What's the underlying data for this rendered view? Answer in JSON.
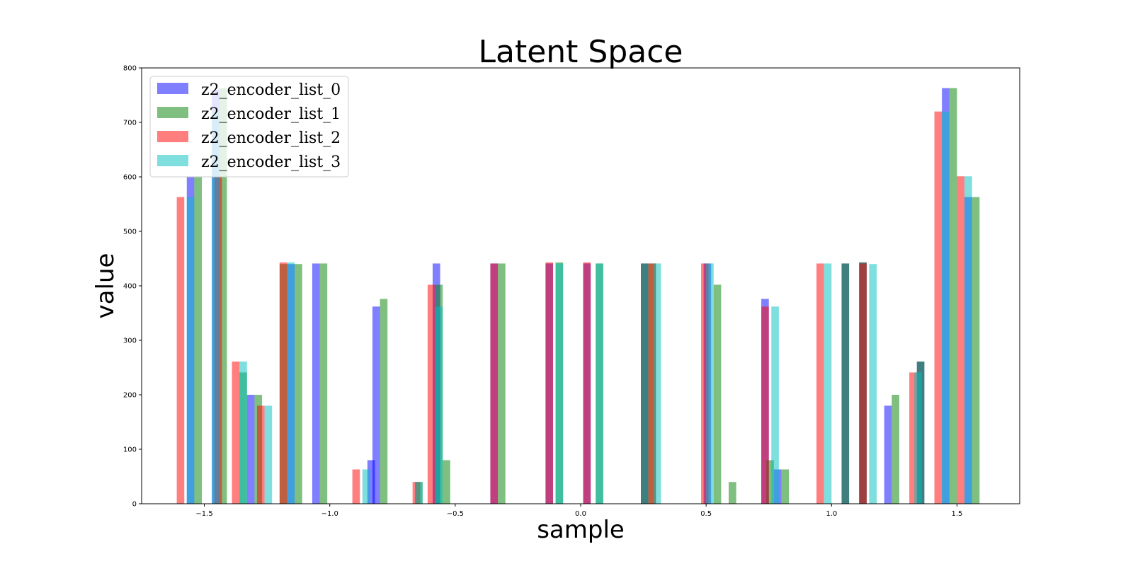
{
  "chart_data": {
    "type": "bar",
    "title": "Latent Space",
    "xlabel": "sample",
    "ylabel": "value",
    "xlim": [
      -1.75,
      1.75
    ],
    "ylim": [
      0,
      800
    ],
    "xticks": [
      -1.5,
      -1.0,
      -0.5,
      0.0,
      0.5,
      1.0,
      1.5
    ],
    "xtick_labels": [
      "−1.5",
      "−1.0",
      "−0.5",
      "0.0",
      "0.5",
      "1.0",
      "1.5"
    ],
    "yticks": [
      0,
      100,
      200,
      300,
      400,
      500,
      600,
      700,
      800
    ],
    "ytick_labels": [
      "0",
      "100",
      "200",
      "300",
      "400",
      "500",
      "600",
      "700",
      "800"
    ],
    "bar_width": 0.03,
    "grid": false,
    "legend_position": "top-left",
    "series": [
      {
        "name": "z2_encoder_list_0",
        "color": "#0000ff",
        "opacity": 0.5,
        "x": [
          -1.555,
          -1.455,
          -1.315,
          -1.155,
          -1.055,
          -0.835,
          -0.815,
          -0.575,
          -0.345,
          -0.125,
          0.025,
          0.255,
          0.505,
          0.735,
          0.785,
          1.055,
          1.125,
          1.225,
          1.355,
          1.455,
          1.545
        ],
        "values": [
          601,
          760,
          200,
          440,
          441,
          80,
          362,
          441,
          441,
          441,
          441,
          441,
          441,
          376,
          63,
          441,
          443,
          180,
          261,
          763,
          563
        ]
      },
      {
        "name": "z2_encoder_list_1",
        "color": "#008000",
        "opacity": 0.5,
        "x": [
          -1.525,
          -1.425,
          -1.345,
          -1.285,
          -1.185,
          -1.125,
          -1.025,
          -0.785,
          -0.645,
          -0.565,
          -0.535,
          -0.315,
          -0.085,
          0.075,
          0.255,
          0.285,
          0.545,
          0.605,
          0.755,
          0.815,
          1.055,
          1.125,
          1.255,
          1.355,
          1.485,
          1.575
        ],
        "values": [
          601,
          763,
          241,
          200,
          440,
          440,
          441,
          376,
          40,
          402,
          80,
          441,
          443,
          441,
          441,
          441,
          402,
          40,
          80,
          63,
          441,
          443,
          200,
          261,
          763,
          563
        ]
      },
      {
        "name": "z2_encoder_list_2",
        "color": "#ff0000",
        "opacity": 0.5,
        "x": [
          -1.595,
          -1.445,
          -1.375,
          -1.275,
          -1.185,
          -0.895,
          -0.655,
          -0.595,
          -0.345,
          -0.125,
          0.025,
          0.285,
          0.495,
          0.735,
          0.955,
          1.125,
          1.325,
          1.425,
          1.515
        ],
        "values": [
          563,
          601,
          261,
          180,
          443,
          63,
          40,
          402,
          441,
          443,
          443,
          441,
          441,
          362,
          441,
          441,
          241,
          720,
          601
        ]
      },
      {
        "name": "z2_encoder_list_3",
        "color": "#00bfbf",
        "opacity": 0.5,
        "x": [
          -1.555,
          -1.455,
          -1.345,
          -1.245,
          -1.155,
          -0.855,
          -0.645,
          -0.565,
          -0.085,
          0.075,
          0.305,
          0.515,
          0.775,
          0.985,
          1.165,
          1.345,
          1.455,
          1.545
        ],
        "values": [
          563,
          720,
          261,
          180,
          443,
          63,
          40,
          362,
          441,
          441,
          441,
          441,
          362,
          441,
          440,
          241,
          720,
          601
        ]
      }
    ]
  }
}
